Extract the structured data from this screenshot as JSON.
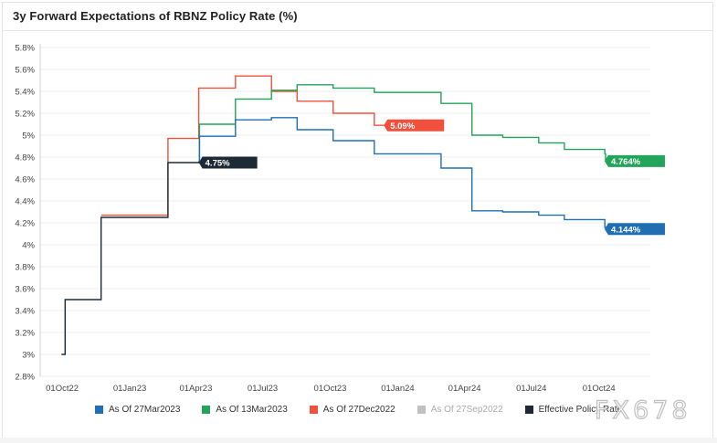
{
  "header": {
    "title": "3y Forward Expectations of RBNZ Policy Rate (%)"
  },
  "chart_data": {
    "type": "line",
    "step": true,
    "title": "3y Forward Expectations of RBNZ Policy Rate (%)",
    "xlabel": "",
    "ylabel": "",
    "ylim": [
      2.8,
      5.8
    ],
    "yticks": [
      2.8,
      3.0,
      3.2,
      3.4,
      3.6,
      3.8,
      4.0,
      4.2,
      4.4,
      4.6,
      4.8,
      5.0,
      5.2,
      5.4,
      5.6,
      5.8
    ],
    "ytick_labels": [
      "2.8%",
      "3%",
      "3.2%",
      "3.4%",
      "3.6%",
      "3.8%",
      "4%",
      "4.2%",
      "4.4%",
      "4.6%",
      "4.8%",
      "5%",
      "5.2%",
      "5.4%",
      "5.6%",
      "5.8%"
    ],
    "xlim": [
      "2022-09-01",
      "2024-12-10"
    ],
    "xticks": [
      "2022-10-01",
      "2023-01-01",
      "2023-04-01",
      "2023-07-01",
      "2023-10-01",
      "2024-01-01",
      "2024-04-01",
      "2024-07-01",
      "2024-10-01"
    ],
    "xtick_labels": [
      "01Oct22",
      "01Jan23",
      "01Apr23",
      "01Jul23",
      "01Oct23",
      "01Jan24",
      "01Apr24",
      "01Jul24",
      "01Oct24"
    ],
    "legend_position": "bottom",
    "series": [
      {
        "name": "As Of 27Mar2023",
        "color": "#1f6fb2",
        "label": "4.144%",
        "label_value": 4.144,
        "points": [
          [
            "2023-04-05",
            4.75
          ],
          [
            "2023-04-06",
            4.99
          ],
          [
            "2023-05-25",
            5.14
          ],
          [
            "2023-07-13",
            5.16
          ],
          [
            "2023-08-17",
            5.05
          ],
          [
            "2023-10-05",
            4.95
          ],
          [
            "2023-11-30",
            4.83
          ],
          [
            "2024-02-29",
            4.7
          ],
          [
            "2024-04-11",
            4.31
          ],
          [
            "2024-05-23",
            4.3
          ],
          [
            "2024-07-11",
            4.27
          ],
          [
            "2024-08-15",
            4.23
          ],
          [
            "2024-10-09",
            4.16
          ],
          [
            "2024-10-10",
            4.144
          ]
        ]
      },
      {
        "name": "As Of 13Mar2023",
        "color": "#22a45a",
        "label": "4.764%",
        "label_value": 4.764,
        "points": [
          [
            "2023-04-05",
            4.75
          ],
          [
            "2023-04-06",
            5.1
          ],
          [
            "2023-05-25",
            5.33
          ],
          [
            "2023-07-13",
            5.41
          ],
          [
            "2023-08-17",
            5.46
          ],
          [
            "2023-10-05",
            5.43
          ],
          [
            "2023-11-30",
            5.39
          ],
          [
            "2024-02-29",
            5.29
          ],
          [
            "2024-04-11",
            5.0
          ],
          [
            "2024-05-23",
            4.98
          ],
          [
            "2024-07-11",
            4.93
          ],
          [
            "2024-08-15",
            4.87
          ],
          [
            "2024-10-09",
            4.83
          ],
          [
            "2024-10-10",
            4.764
          ]
        ]
      },
      {
        "name": "As Of 27Dec2022",
        "color": "#f0503c",
        "label": "5.09%",
        "label_value": 5.09,
        "points": [
          [
            "2022-11-23",
            4.27
          ],
          [
            "2023-02-22",
            4.97
          ],
          [
            "2023-04-05",
            5.43
          ],
          [
            "2023-05-25",
            5.54
          ],
          [
            "2023-07-13",
            5.4
          ],
          [
            "2023-08-17",
            5.31
          ],
          [
            "2023-10-05",
            5.2
          ],
          [
            "2023-11-30",
            5.09
          ],
          [
            "2024-01-31",
            5.09
          ]
        ]
      },
      {
        "name": "As Of 27Sep2022",
        "color": "#c0c0c0",
        "label": "",
        "points": []
      },
      {
        "name": "Effective Policy Rate",
        "color": "#1d2a36",
        "label": "4.75%",
        "label_value": 4.75,
        "points": [
          [
            "2022-09-30",
            3.0
          ],
          [
            "2022-10-05",
            3.5
          ],
          [
            "2022-11-23",
            4.25
          ],
          [
            "2023-02-22",
            4.75
          ],
          [
            "2023-04-05",
            4.76
          ]
        ]
      }
    ]
  },
  "watermark": {
    "text": "FX678"
  }
}
